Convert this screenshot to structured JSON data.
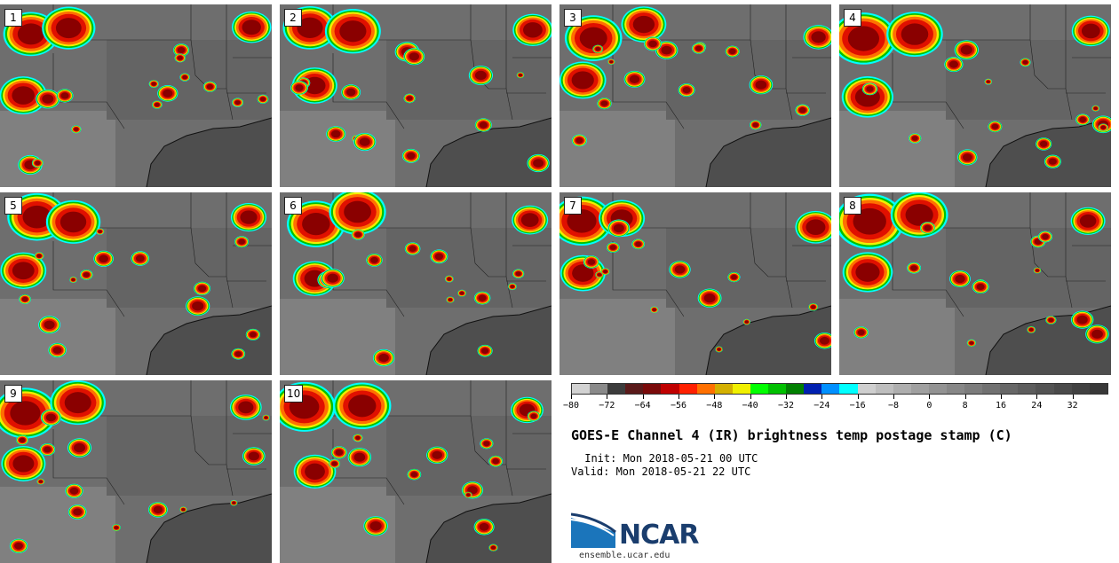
{
  "title": "GOES-E Channel 4 (IR) brightness temp postage stamp (C)",
  "init": " Init: Mon 2018-05-21 00 UTC",
  "valid": "Valid: Mon 2018-05-21 22 UTC",
  "logo_text": "NCAR",
  "website": "ensemble.ucar.edu",
  "members": [
    "1",
    "2",
    "3",
    "4",
    "5",
    "6",
    "7",
    "8",
    "9",
    "10"
  ],
  "colorbar": {
    "min": -80,
    "max": 40,
    "tick_labels": [
      "−80",
      "−72",
      "−64",
      "−56",
      "−48",
      "−40",
      "−32",
      "−24",
      "−16",
      "−8",
      "0",
      "8",
      "16",
      "24",
      "32"
    ],
    "colors": [
      "#d2d2d2",
      "#8a8a8a",
      "#3c3c3c",
      "#5a1a1a",
      "#7a0a0a",
      "#c00000",
      "#ff2000",
      "#ff7000",
      "#d4b000",
      "#f0f000",
      "#00ff00",
      "#00c000",
      "#008000",
      "#0020b0",
      "#0090ff",
      "#00ffff",
      "#cfcfcf",
      "#bebebe",
      "#aeaeae",
      "#a0a0a0",
      "#939393",
      "#878787",
      "#7c7c7c",
      "#717171",
      "#676767",
      "#5d5d5d",
      "#535353",
      "#4a4a4a",
      "#414141",
      "#383838"
    ]
  }
}
